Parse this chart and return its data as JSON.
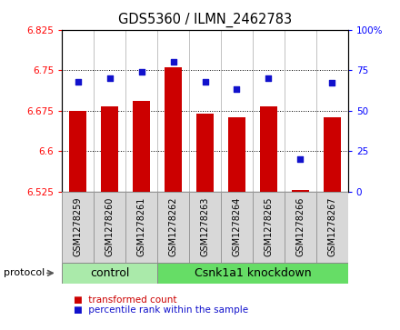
{
  "title": "GDS5360 / ILMN_2462783",
  "samples": [
    "GSM1278259",
    "GSM1278260",
    "GSM1278261",
    "GSM1278262",
    "GSM1278263",
    "GSM1278264",
    "GSM1278265",
    "GSM1278266",
    "GSM1278267"
  ],
  "transformed_counts": [
    6.675,
    6.683,
    6.693,
    6.755,
    6.67,
    6.663,
    6.683,
    6.527,
    6.663
  ],
  "percentile_ranks": [
    68,
    70,
    74,
    80,
    68,
    63,
    70,
    20,
    67
  ],
  "ylim_left": [
    6.525,
    6.825
  ],
  "ylim_right": [
    0,
    100
  ],
  "yticks_left": [
    6.525,
    6.6,
    6.675,
    6.75,
    6.825
  ],
  "yticks_right": [
    0,
    25,
    50,
    75,
    100
  ],
  "ytick_labels_right": [
    "0",
    "25",
    "50",
    "75",
    "100%"
  ],
  "hlines": [
    6.6,
    6.675,
    6.75
  ],
  "bar_color": "#cc0000",
  "dot_color": "#1111cc",
  "bar_bottom": 6.525,
  "groups": [
    {
      "label": "control",
      "start": 0,
      "end": 3,
      "color": "#aaeaaa"
    },
    {
      "label": "Csnk1a1 knockdown",
      "start": 3,
      "end": 9,
      "color": "#66dd66"
    }
  ],
  "protocol_label": "protocol",
  "legend_bar_label": "transformed count",
  "legend_dot_label": "percentile rank within the sample",
  "title_fontsize": 10.5,
  "tick_fontsize": 7.5,
  "sample_fontsize": 7,
  "group_fontsize": 9,
  "legend_fontsize": 7.5
}
